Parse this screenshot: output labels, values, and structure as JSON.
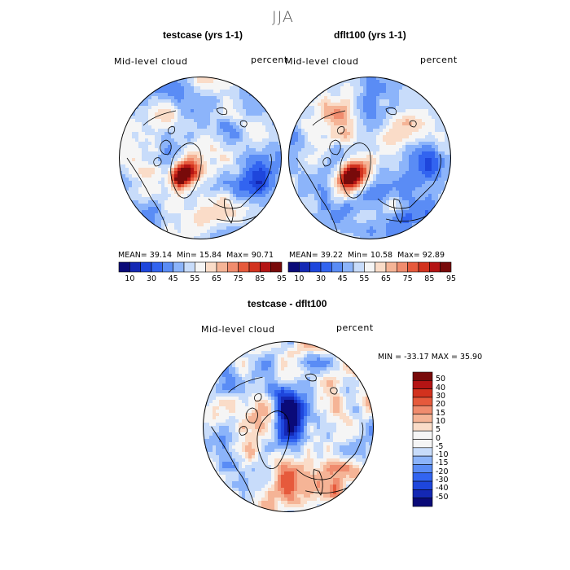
{
  "season": "JJA",
  "panels": {
    "left": {
      "title": "testcase (yrs 1-1)",
      "variable": "Mid-level cloud",
      "units": "percent",
      "stats": {
        "mean_label": "MEAN=",
        "mean": "39.14",
        "min_label": "Min=",
        "min": "15.84",
        "max_label": "Max=",
        "max": "90.71"
      }
    },
    "right": {
      "title": "dflt100 (yrs 1-1)",
      "variable": "Mid-level cloud",
      "units": "percent",
      "stats": {
        "mean_label": "MEAN=",
        "mean": "39.22",
        "min_label": "Min=",
        "min": "10.58",
        "max_label": "Max=",
        "max": "92.89"
      }
    },
    "diff": {
      "title": "testcase - dflt100",
      "variable": "Mid-level cloud",
      "units": "percent",
      "minmax": "MIN = -33.17 MAX =  35.90"
    }
  },
  "chart_data": [
    {
      "type": "heatmap",
      "projection": "north polar stereographic",
      "title": "testcase (yrs 1-1)",
      "variable": "Mid-level cloud",
      "units": "percent",
      "mean": 39.14,
      "min": 15.84,
      "max": 90.71,
      "colorbar_levels": [
        10,
        30,
        45,
        55,
        65,
        75,
        85,
        95
      ],
      "colorbar_tick_labels": [
        "10",
        "30",
        "45",
        "55",
        "65",
        "75",
        "85",
        "95"
      ]
    },
    {
      "type": "heatmap",
      "projection": "north polar stereographic",
      "title": "dflt100 (yrs 1-1)",
      "variable": "Mid-level cloud",
      "units": "percent",
      "mean": 39.22,
      "min": 10.58,
      "max": 92.89,
      "colorbar_levels": [
        10,
        30,
        45,
        55,
        65,
        75,
        85,
        95
      ],
      "colorbar_tick_labels": [
        "10",
        "30",
        "45",
        "55",
        "65",
        "75",
        "85",
        "95"
      ]
    },
    {
      "type": "heatmap",
      "projection": "north polar stereographic",
      "title": "testcase - dflt100",
      "variable": "Mid-level cloud",
      "units": "percent",
      "min": -33.17,
      "max": 35.9,
      "colorbar_tick_labels": [
        "50",
        "40",
        "30",
        "20",
        "15",
        "10",
        "5",
        "0",
        "-5",
        "-10",
        "-15",
        "-20",
        "-30",
        "-40",
        "-50"
      ]
    }
  ],
  "colors": {
    "abs_palette": [
      "#0a0a78",
      "#1428b4",
      "#1e46dc",
      "#3264f0",
      "#5a8cf5",
      "#8cb4fa",
      "#c8dcfa",
      "#f5f5f5",
      "#fadcc8",
      "#f5b496",
      "#f08c6e",
      "#e65a3c",
      "#d2321e",
      "#b41414",
      "#780a0a"
    ],
    "diff_palette": [
      "#780a0a",
      "#b41414",
      "#d2321e",
      "#e65a3c",
      "#f08c6e",
      "#f5b496",
      "#fadcc8",
      "#f5f5f5",
      "#c8dcfa",
      "#8cb4fa",
      "#5a8cf5",
      "#3264f0",
      "#1e46dc",
      "#1428b4",
      "#0a0a78"
    ]
  }
}
